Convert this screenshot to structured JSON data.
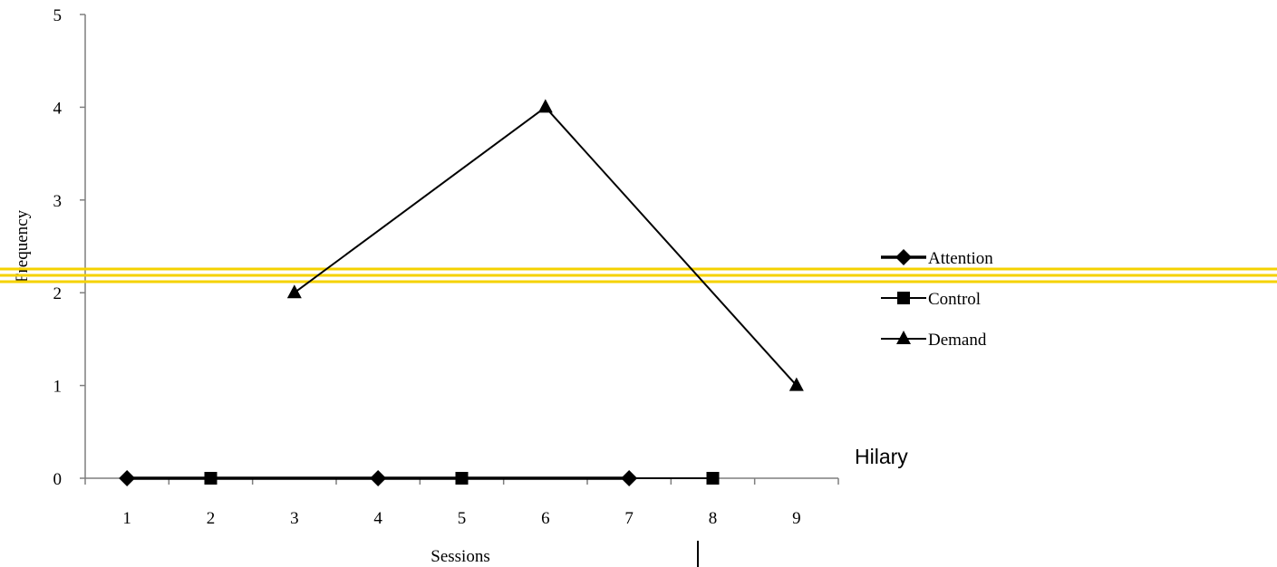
{
  "chart_data": {
    "type": "line",
    "x": [
      1,
      2,
      3,
      4,
      5,
      6,
      7,
      8,
      9
    ],
    "x_tick_labels": [
      "1",
      "2",
      "3",
      "4",
      "5",
      "6",
      "7",
      "8",
      "9"
    ],
    "y_tick_labels": [
      "0",
      "1",
      "2",
      "3",
      "4",
      "5"
    ],
    "ylim": [
      0,
      5
    ],
    "xlabel": "Sessions",
    "ylabel": "Frequency",
    "subject": "Hilary",
    "grid": false,
    "legend_position": "right",
    "series": [
      {
        "name": "Attention",
        "marker": "diamond",
        "points": [
          [
            1,
            0
          ],
          [
            4,
            0
          ],
          [
            7,
            0
          ]
        ]
      },
      {
        "name": "Control",
        "marker": "square",
        "points": [
          [
            2,
            0
          ],
          [
            5,
            0
          ],
          [
            8,
            0
          ]
        ]
      },
      {
        "name": "Demand",
        "marker": "triangle",
        "points": [
          [
            3,
            2
          ],
          [
            6,
            4
          ],
          [
            9,
            1
          ]
        ]
      }
    ],
    "colors": {
      "series": "#000000",
      "phase_change_line": "#f5d200"
    }
  }
}
